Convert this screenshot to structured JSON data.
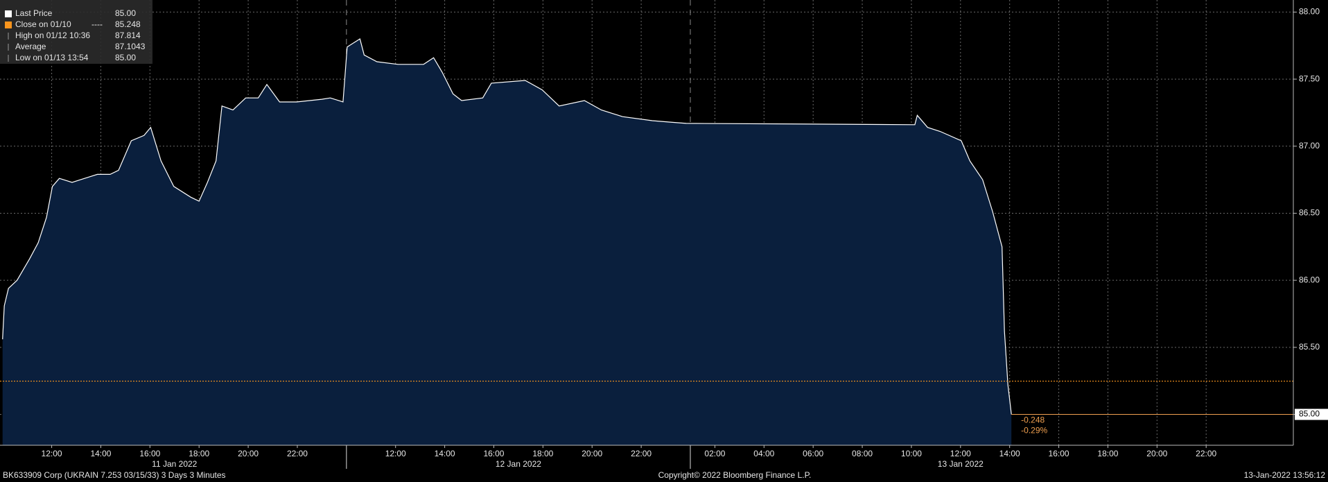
{
  "chart_data": {
    "type": "area",
    "x": [
      0,
      0.07,
      0.24,
      0.59,
      1.1,
      1.45,
      1.79,
      2.03,
      2.31,
      2.83,
      3.34,
      3.86,
      4.38,
      4.72,
      5.24,
      5.76,
      6.03,
      6.45,
      6.97,
      7.66,
      8.0,
      8.34,
      8.69,
      8.93,
      9.38,
      9.9,
      10.41,
      10.76,
      11.28,
      11.97,
      13.0,
      13.34,
      13.86,
      14.03,
      14.55,
      14.72,
      15.24,
      16.1,
      17.14,
      17.55,
      17.9,
      18.34,
      18.69,
      19.55,
      19.9,
      21.28,
      21.97,
      22.66,
      23.69,
      24.38,
      25.24,
      26.45,
      27.14,
      27.83,
      37.14,
      37.24,
      37.66,
      38.17,
      39.03,
      39.38,
      39.9,
      40.31,
      40.69,
      40.79,
      40.93,
      41.07
    ],
    "series": [
      {
        "name": "Last Price",
        "color": "#ffffff",
        "values": [
          85.56,
          85.81,
          85.94,
          86.0,
          86.16,
          86.28,
          86.47,
          86.7,
          86.76,
          86.73,
          86.76,
          86.79,
          86.79,
          86.82,
          87.04,
          87.08,
          87.14,
          86.89,
          86.7,
          86.62,
          86.59,
          86.73,
          86.89,
          87.3,
          87.27,
          87.36,
          87.36,
          87.46,
          87.33,
          87.33,
          87.35,
          87.36,
          87.33,
          87.74,
          87.8,
          87.68,
          87.63,
          87.61,
          87.61,
          87.66,
          87.55,
          87.39,
          87.34,
          87.36,
          87.47,
          87.49,
          87.42,
          87.3,
          87.34,
          87.27,
          87.22,
          87.19,
          87.18,
          87.17,
          87.16,
          87.23,
          87.14,
          87.11,
          87.04,
          86.89,
          86.75,
          86.51,
          86.25,
          85.62,
          85.22,
          85.0
        ]
      }
    ],
    "xlim": [
      0,
      52.55
    ],
    "ylim": [
      84.77,
      88.09
    ],
    "xticks": [
      {
        "value": 2,
        "label": "12:00"
      },
      {
        "value": 4,
        "label": "14:00"
      },
      {
        "value": 6,
        "label": "16:00"
      },
      {
        "value": 8,
        "label": "18:00"
      },
      {
        "value": 10,
        "label": "20:00"
      },
      {
        "value": 12,
        "label": "22:00"
      },
      {
        "value": 16,
        "label": "12:00"
      },
      {
        "value": 18,
        "label": "14:00"
      },
      {
        "value": 20,
        "label": "16:00"
      },
      {
        "value": 22,
        "label": "18:00"
      },
      {
        "value": 24,
        "label": "20:00"
      },
      {
        "value": 26,
        "label": "22:00"
      },
      {
        "value": 29,
        "label": "02:00"
      },
      {
        "value": 31,
        "label": "04:00"
      },
      {
        "value": 33,
        "label": "06:00"
      },
      {
        "value": 35,
        "label": "08:00"
      },
      {
        "value": 37,
        "label": "10:00"
      },
      {
        "value": 39,
        "label": "12:00"
      },
      {
        "value": 41,
        "label": "14:00"
      },
      {
        "value": 43,
        "label": "16:00"
      },
      {
        "value": 45,
        "label": "18:00"
      },
      {
        "value": 47,
        "label": "20:00"
      },
      {
        "value": 49,
        "label": "22:00"
      }
    ],
    "day_labels": [
      {
        "value": 7,
        "label": "11 Jan 2022"
      },
      {
        "value": 21,
        "label": "12 Jan 2022"
      },
      {
        "value": 39,
        "label": "13 Jan 2022"
      }
    ],
    "day_breaks": [
      14,
      28
    ],
    "yticks": [
      {
        "value": 85,
        "label": "85.00"
      },
      {
        "value": 85.5,
        "label": "85.50"
      },
      {
        "value": 86,
        "label": "86.00"
      },
      {
        "value": 86.5,
        "label": "86.50"
      },
      {
        "value": 87,
        "label": "87.00"
      },
      {
        "value": 87.5,
        "label": "87.50"
      },
      {
        "value": 88,
        "label": "88.00"
      }
    ],
    "grid": true,
    "last_price": {
      "value": 85,
      "label": "85.00"
    },
    "close": {
      "label": "Close on 01/10",
      "style": "----",
      "value": 85.248,
      "color": "#f7941d"
    },
    "legend_rows": [
      {
        "label": "High on 01/12 10:36",
        "value": "87.814"
      },
      {
        "label": "Average",
        "value": "87.1043"
      },
      {
        "label": "Low on 01/13 13:54",
        "value": "85.00"
      }
    ],
    "annotations": [
      "-0.248",
      "-0.29%"
    ],
    "footer": {
      "left": "BK633909 Corp (UKRAIN 7.253 03/15/33) 3 Days 3 Minutes",
      "center": "Copyright© 2022 Bloomberg Finance L.P.",
      "right": "13-Jan-2022 13:56:12"
    }
  }
}
